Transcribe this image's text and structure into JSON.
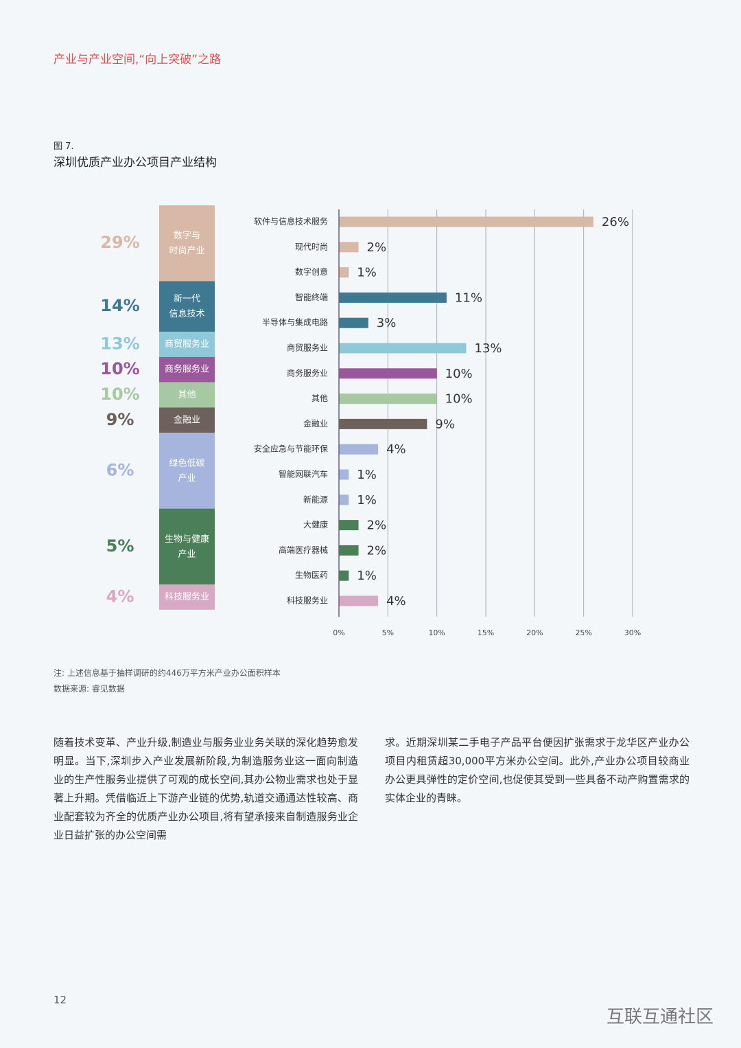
{
  "header": {
    "title": "产业与产业空间,“向上突破”之路"
  },
  "figure": {
    "label": "图 7.",
    "title": "深圳优质产业办公项目产业结构"
  },
  "chart_data": {
    "type": "bar",
    "orientation": "horizontal",
    "grid": true,
    "xlim": [
      0,
      30
    ],
    "xticks": [
      {
        "value": 0,
        "label": "0%"
      },
      {
        "value": 5,
        "label": "5%"
      },
      {
        "value": 10,
        "label": "10%"
      },
      {
        "value": 15,
        "label": "15%"
      },
      {
        "value": 20,
        "label": "20%"
      },
      {
        "value": 25,
        "label": "25%"
      },
      {
        "value": 30,
        "label": "30%"
      }
    ],
    "groups": [
      {
        "name": "数字与\n时尚产业",
        "value": 29,
        "value_label": "29%",
        "color": "#d8b9a7",
        "categories": [
          "软件与信息技术服务",
          "现代时尚",
          "数字创意"
        ],
        "values": [
          26,
          2,
          1
        ],
        "value_labels": [
          "26%",
          "2%",
          "1%"
        ]
      },
      {
        "name": "新一代\n信息技术",
        "value": 14,
        "value_label": "14%",
        "color": "#3e7891",
        "categories": [
          "智能终端",
          "半导体与集成电路"
        ],
        "values": [
          11,
          3
        ],
        "value_labels": [
          "11%",
          "3%"
        ]
      },
      {
        "name": "商贸服务业",
        "value": 13,
        "value_label": "13%",
        "color": "#8fc9d9",
        "categories": [
          "商贸服务业"
        ],
        "values": [
          13
        ],
        "value_labels": [
          "13%"
        ]
      },
      {
        "name": "商务服务业",
        "value": 10,
        "value_label": "10%",
        "color": "#9a579b",
        "categories": [
          "商务服务业"
        ],
        "values": [
          10
        ],
        "value_labels": [
          "10%"
        ]
      },
      {
        "name": "其他",
        "value": 10,
        "value_label": "10%",
        "color": "#a6c8a2",
        "categories": [
          "其他"
        ],
        "values": [
          10
        ],
        "value_labels": [
          "10%"
        ]
      },
      {
        "name": "金融业",
        "value": 9,
        "value_label": "9%",
        "color": "#6e615b",
        "categories": [
          "金融业"
        ],
        "values": [
          9
        ],
        "value_labels": [
          "9%"
        ]
      },
      {
        "name": "绿色低碳\n产业",
        "value": 6,
        "value_label": "6%",
        "color": "#a6b5dd",
        "categories": [
          "安全应急与节能环保",
          "智能网联汽车",
          "新能源"
        ],
        "values": [
          4,
          1,
          1
        ],
        "value_labels": [
          "4%",
          "1%",
          "1%"
        ]
      },
      {
        "name": "生物与健康\n产业",
        "value": 5,
        "value_label": "5%",
        "color": "#4a7f57",
        "categories": [
          "大健康",
          "高端医疗器械",
          "生物医药"
        ],
        "values": [
          2,
          2,
          1
        ],
        "value_labels": [
          "2%",
          "2%",
          "1%"
        ]
      },
      {
        "name": "科技服务业",
        "value": 4,
        "value_label": "4%",
        "color": "#d7a9c5",
        "categories": [
          "科技服务业"
        ],
        "values": [
          4
        ],
        "value_labels": [
          "4%"
        ]
      }
    ]
  },
  "notes": [
    "注: 上述信息基于抽样调研的约446万平方米产业办公面积样本",
    "数据来源: 睿见数据"
  ],
  "body": {
    "columns": [
      "随着技术变革、产业升级,制造业与服务业业务关联的深化趋势愈发明显。当下,深圳步入产业发展新阶段,为制造服务业这一面向制造业的生产性服务业提供了可观的成长空间,其办公物业需求也处于显著上升期。凭借临近上下游产业链的优势,轨道交通通达性较高、商业配套较为齐全的优质产业办公项目,将有望承接来自制造服务业企业日益扩张的办公空间需",
      "求。近期深圳某二手电子产品平台便因扩张需求于龙华区产业办公项目内租赁超30,000平方米办公空间。此外,产业办公项目较商业办公更具弹性的定价空间,也促使其受到一些具备不动产购置需求的实体企业的青睐。"
    ]
  },
  "footer": {
    "page": "12",
    "watermark": "互联互通社区"
  }
}
